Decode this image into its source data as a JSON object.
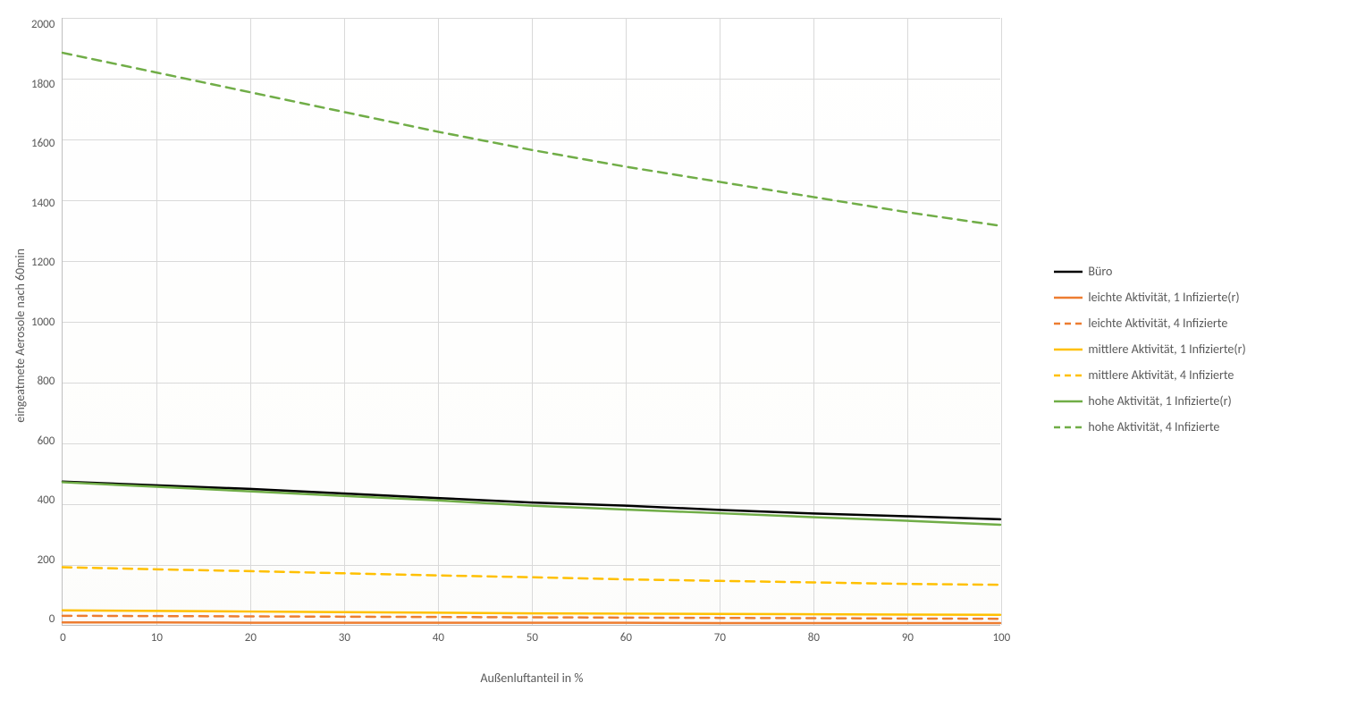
{
  "chart": {
    "type": "line",
    "xlabel": "Außenluftanteil in %",
    "ylabel": "eingeatmete Aerosole nach 60min",
    "xlim": [
      0,
      100
    ],
    "ylim": [
      0,
      2000
    ],
    "xtick_step": 10,
    "ytick_step": 200,
    "xticks": [
      0,
      10,
      20,
      30,
      40,
      50,
      60,
      70,
      80,
      90,
      100
    ],
    "yticks": [
      0,
      200,
      400,
      600,
      800,
      1000,
      1200,
      1400,
      1600,
      1800,
      2000
    ],
    "label_fontsize": 14,
    "tick_fontsize": 13,
    "background_color": "#ffffff",
    "grid_color": "#d9d9d9",
    "axis_color": "#bfbfbf",
    "text_color": "#595959",
    "series": [
      {
        "name": "Büro",
        "color": "#000000",
        "dash": "solid",
        "width": 2.5,
        "x": [
          0,
          10,
          20,
          30,
          40,
          50,
          60,
          70,
          80,
          90,
          100
        ],
        "y": [
          472,
          460,
          448,
          433,
          418,
          403,
          393,
          379,
          367,
          358,
          348
        ]
      },
      {
        "name": "leichte Aktivität, 1 Infizierte(r)",
        "color": "#ed7d31",
        "dash": "solid",
        "width": 2.5,
        "x": [
          0,
          10,
          20,
          30,
          40,
          50,
          60,
          70,
          80,
          90,
          100
        ],
        "y": [
          8,
          8,
          7,
          7,
          7,
          7,
          7,
          6,
          6,
          6,
          6
        ]
      },
      {
        "name": "leichte Aktivität, 4 Infizierte",
        "color": "#ed7d31",
        "dash": "dashed",
        "width": 2.5,
        "x": [
          0,
          10,
          20,
          30,
          40,
          50,
          60,
          70,
          80,
          90,
          100
        ],
        "y": [
          30,
          29,
          28,
          27,
          26,
          25,
          24,
          23,
          22,
          21,
          20
        ]
      },
      {
        "name": "mittlere Aktivität, 1 Infizierte(r)",
        "color": "#ffc000",
        "dash": "solid",
        "width": 2.5,
        "x": [
          0,
          10,
          20,
          30,
          40,
          50,
          60,
          70,
          80,
          90,
          100
        ],
        "y": [
          48,
          46,
          44,
          42,
          40,
          38,
          37,
          36,
          35,
          34,
          33
        ]
      },
      {
        "name": "mittlere Aktivität, 4 Infizierte",
        "color": "#ffc000",
        "dash": "dashed",
        "width": 2.5,
        "x": [
          0,
          10,
          20,
          30,
          40,
          50,
          60,
          70,
          80,
          90,
          100
        ],
        "y": [
          190,
          183,
          177,
          170,
          163,
          157,
          150,
          145,
          140,
          135,
          132
        ]
      },
      {
        "name": "hohe Aktivität, 1 Infizierte(r)",
        "color": "#70ad47",
        "dash": "solid",
        "width": 2.5,
        "x": [
          0,
          10,
          20,
          30,
          40,
          50,
          60,
          70,
          80,
          90,
          100
        ],
        "y": [
          470,
          455,
          440,
          425,
          410,
          393,
          380,
          368,
          355,
          343,
          330
        ]
      },
      {
        "name": "hohe Aktivität, 4 Infizierte",
        "color": "#70ad47",
        "dash": "dashed",
        "width": 2.5,
        "x": [
          0,
          10,
          20,
          30,
          40,
          50,
          60,
          70,
          80,
          90,
          100
        ],
        "y": [
          1885,
          1820,
          1755,
          1690,
          1625,
          1565,
          1510,
          1460,
          1410,
          1360,
          1315
        ]
      }
    ]
  }
}
